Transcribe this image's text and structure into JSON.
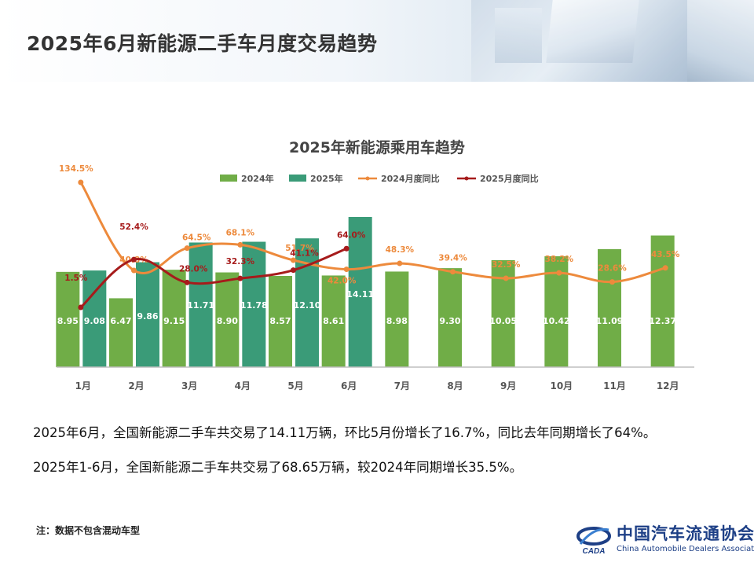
{
  "page": {
    "title": "2025年6月新能源二手车月度交易趋势",
    "notes": [
      "2025年6月，全国新能源二手车共交易了14.11万辆，环比5月份增长了16.7%，同比去年同期增长了64%。",
      "2025年1-6月，全国新能源二手车共交易了68.65万辆，较2024年同期增长35.5%。"
    ],
    "footnote": "注：数据不包含混动车型",
    "logo": {
      "cn": "中国汽车流通协会",
      "en": "China Automobile Dealers Association",
      "mark_text": "CADA"
    }
  },
  "colors": {
    "bar_2024": "#70ad47",
    "bar_2025": "#3a9b78",
    "line_2024": "#ed8a3c",
    "line_2025": "#a61b1b",
    "title_text": "#333333",
    "logo_blue": "#1d3f86"
  },
  "chart_data": {
    "type": "bar",
    "title": "2025年新能源乘用车趋势",
    "legend_position": "top",
    "grid": false,
    "categories": [
      "1月",
      "2月",
      "3月",
      "4月",
      "5月",
      "6月",
      "7月",
      "8月",
      "9月",
      "10月",
      "11月",
      "12月"
    ],
    "series": [
      {
        "name": "2024年",
        "kind": "bar",
        "values": [
          8.95,
          6.47,
          9.15,
          8.9,
          8.57,
          8.61,
          8.98,
          9.3,
          10.05,
          10.42,
          11.09,
          12.37
        ]
      },
      {
        "name": "2025年",
        "kind": "bar",
        "values": [
          9.08,
          9.86,
          11.71,
          11.78,
          12.1,
          14.11,
          null,
          null,
          null,
          null,
          null,
          null
        ]
      },
      {
        "name": "2024月度同比",
        "kind": "line",
        "values": [
          134.5,
          40.8,
          64.5,
          68.1,
          51.7,
          42.0,
          48.3,
          39.4,
          32.5,
          38.2,
          28.6,
          43.5
        ],
        "labels": [
          "134.5%",
          "40.8%",
          "64.5%",
          "68.1%",
          "51.7%",
          "42.0%",
          "48.3%",
          "39.4%",
          "32.5%",
          "38.2%",
          "28.6%",
          "43.5%"
        ]
      },
      {
        "name": "2025月度同比",
        "kind": "line",
        "values": [
          1.5,
          52.4,
          28.0,
          32.3,
          41.1,
          64.0,
          null,
          null,
          null,
          null,
          null,
          null
        ],
        "labels": [
          "1.5%",
          "52.4%",
          "28.0%",
          "32.3%",
          "41.1%",
          "64.0%",
          null,
          null,
          null,
          null,
          null,
          null
        ]
      }
    ]
  }
}
